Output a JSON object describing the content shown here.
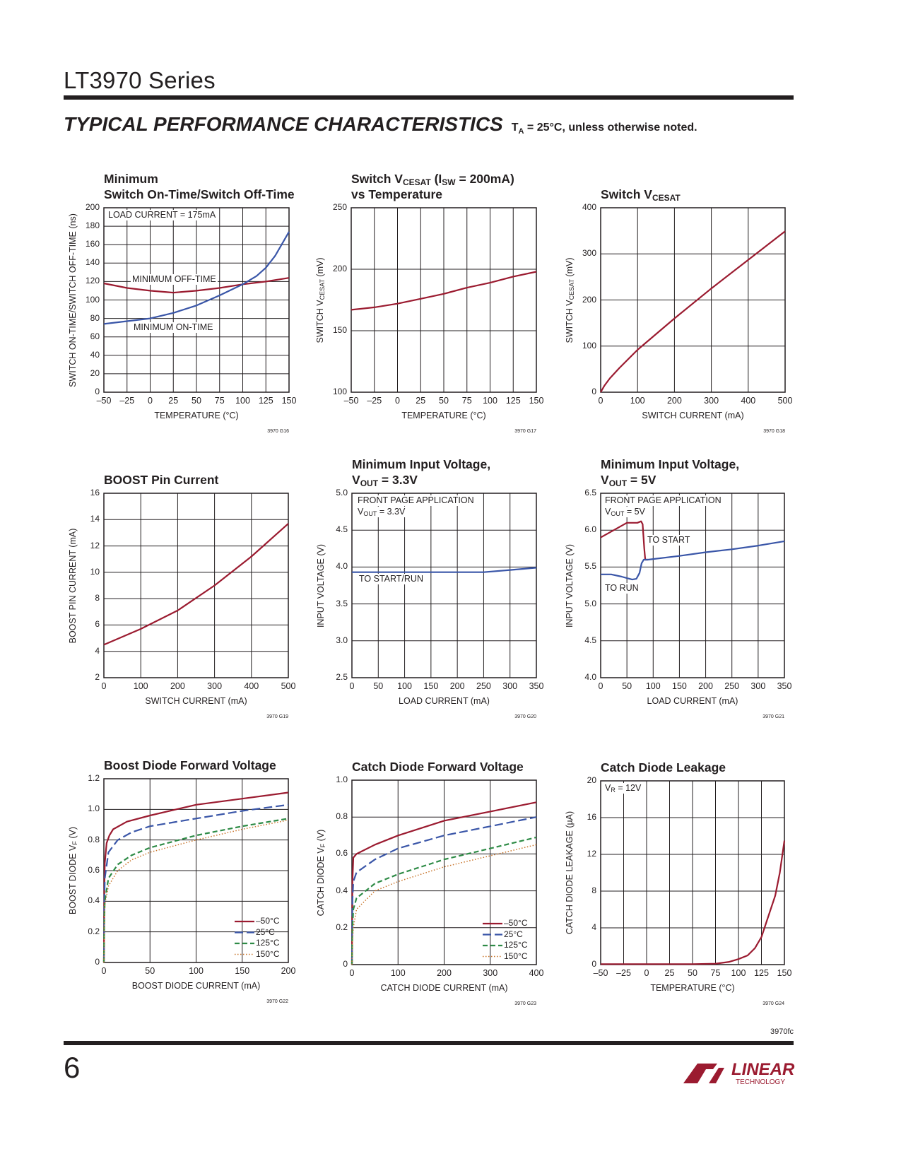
{
  "header": {
    "series_title": "LT3970 Series",
    "section_title": "TYPICAL PERFORMANCE CHARACTERISTICS",
    "section_note": [
      {
        "t": "T"
      },
      {
        "sub": "A"
      },
      {
        "t": " = 25°C, unless otherwise noted."
      }
    ]
  },
  "footer": {
    "page_code": "3970fc",
    "page_number": "6",
    "logo_text": "LINEAR TECHNOLOGY"
  },
  "colors": {
    "red": "#9b1b30",
    "blue": "#3a56a8",
    "green": "#2e8b46",
    "orange": "#c8742a",
    "grid": "#231f20"
  },
  "chart_data": [
    {
      "type": "line",
      "title": [
        [
          {
            "t": "Minimum"
          }
        ],
        [
          {
            "t": "Switch On-Time/Switch Off-Time"
          }
        ]
      ],
      "xlabel": [
        {
          "t": "TEMPERATURE (°C)"
        }
      ],
      "ylabel": [
        {
          "t": "SWITCH ON-TIME/SWITCH OFF-TIME (ns)"
        }
      ],
      "figure_id": "3970 G16",
      "xlim": [
        -50,
        150
      ],
      "ylim": [
        0,
        200
      ],
      "grid": true,
      "xticks": [
        -50,
        -25,
        0,
        25,
        50,
        75,
        100,
        125,
        150
      ],
      "xtick_labels": [
        "–50",
        "–25",
        "0",
        "25",
        "50",
        "75",
        "100",
        "125",
        "150"
      ],
      "yticks": [
        0,
        20,
        40,
        60,
        80,
        100,
        120,
        140,
        160,
        180,
        200
      ],
      "ytick_labels": [
        "0",
        "20",
        "40",
        "60",
        "80",
        "100",
        "120",
        "140",
        "160",
        "180",
        "200"
      ],
      "annotations": [
        [
          {
            "t": "LOAD CURRENT = 175mA"
          }
        ],
        [
          {
            "t": "MINIMUM OFF-TIME"
          }
        ],
        [
          {
            "t": "MINIMUM ON-TIME"
          }
        ]
      ],
      "series": [
        {
          "name": "MINIMUM OFF-TIME",
          "color": "red",
          "style": "solid",
          "x": [
            -50,
            -25,
            0,
            25,
            50,
            75,
            100,
            125,
            150
          ],
          "y": [
            118,
            113,
            110,
            108,
            110,
            113,
            117,
            120,
            124
          ]
        },
        {
          "name": "MINIMUM ON-TIME",
          "color": "blue",
          "style": "solid",
          "x": [
            -50,
            -25,
            0,
            25,
            50,
            75,
            100,
            115,
            125,
            135,
            142,
            150
          ],
          "y": [
            74,
            77,
            80,
            86,
            94,
            105,
            117,
            126,
            135,
            148,
            160,
            174
          ]
        }
      ]
    },
    {
      "type": "line",
      "title": [
        [
          {
            "t": "Switch V"
          },
          {
            "sub": "CESAT"
          },
          {
            "t": " (I"
          },
          {
            "sub": "SW"
          },
          {
            "t": " = 200mA)"
          }
        ],
        [
          {
            "t": "vs Temperature"
          }
        ]
      ],
      "xlabel": [
        {
          "t": "TEMPERATURE (°C)"
        }
      ],
      "ylabel": [
        {
          "t": "SWITCH V"
        },
        {
          "sub": "CESAT"
        },
        {
          "t": " (mV)"
        }
      ],
      "figure_id": "3970 G17",
      "xlim": [
        -50,
        150
      ],
      "ylim": [
        100,
        250
      ],
      "grid": true,
      "xticks": [
        -50,
        -25,
        0,
        25,
        50,
        75,
        100,
        125,
        150
      ],
      "xtick_labels": [
        "–50",
        "–25",
        "0",
        "25",
        "50",
        "75",
        "100",
        "125",
        "150"
      ],
      "yticks": [
        100,
        150,
        200,
        250
      ],
      "ytick_labels": [
        "100",
        "150",
        "200",
        "250"
      ],
      "annotations": [],
      "series": [
        {
          "color": "red",
          "style": "solid",
          "x": [
            -50,
            -25,
            0,
            25,
            50,
            75,
            100,
            125,
            150
          ],
          "y": [
            167,
            169,
            172,
            176,
            180,
            185,
            189,
            194,
            198
          ]
        }
      ]
    },
    {
      "type": "line",
      "title": [
        [
          {
            "t": "Switch V"
          },
          {
            "sub": "CESAT"
          }
        ]
      ],
      "xlabel": [
        {
          "t": "SWITCH CURRENT (mA)"
        }
      ],
      "ylabel": [
        {
          "t": "SWITCH V"
        },
        {
          "sub": "CESAT"
        },
        {
          "t": " (mV)"
        }
      ],
      "figure_id": "3970 G18",
      "xlim": [
        0,
        500
      ],
      "ylim": [
        0,
        400
      ],
      "grid": true,
      "xticks": [
        0,
        100,
        200,
        300,
        400,
        500
      ],
      "xtick_labels": [
        "0",
        "100",
        "200",
        "300",
        "400",
        "500"
      ],
      "yticks": [
        0,
        100,
        200,
        300,
        400
      ],
      "ytick_labels": [
        "0",
        "100",
        "200",
        "300",
        "400"
      ],
      "annotations": [],
      "series": [
        {
          "color": "red",
          "style": "solid",
          "x": [
            0,
            10,
            25,
            50,
            100,
            200,
            300,
            400,
            500
          ],
          "y": [
            0,
            14,
            30,
            52,
            92,
            160,
            225,
            287,
            349
          ]
        }
      ]
    },
    {
      "type": "line",
      "title": [
        [
          {
            "t": "BOOST Pin Current"
          }
        ]
      ],
      "xlabel": [
        {
          "t": "SWITCH CURRENT (mA)"
        }
      ],
      "ylabel": [
        {
          "t": "BOOST PIN CURRENT (mA)"
        }
      ],
      "figure_id": "3970 G19",
      "xlim": [
        0,
        500
      ],
      "ylim": [
        2,
        16
      ],
      "grid": true,
      "xticks": [
        0,
        100,
        200,
        300,
        400,
        500
      ],
      "xtick_labels": [
        "0",
        "100",
        "200",
        "300",
        "400",
        "500"
      ],
      "yticks": [
        2,
        4,
        6,
        8,
        10,
        12,
        14,
        16
      ],
      "ytick_labels": [
        "2",
        "4",
        "6",
        "8",
        "10",
        "12",
        "14",
        "16"
      ],
      "annotations": [],
      "series": [
        {
          "color": "red",
          "style": "solid",
          "x": [
            0,
            100,
            200,
            300,
            400,
            500
          ],
          "y": [
            4.5,
            5.7,
            7.1,
            9.0,
            11.2,
            13.7
          ]
        }
      ]
    },
    {
      "type": "line",
      "title": [
        [
          {
            "t": "Minimum Input Voltage,"
          }
        ],
        [
          {
            "t": "V"
          },
          {
            "sub": "OUT"
          },
          {
            "t": " = 3.3V"
          }
        ]
      ],
      "xlabel": [
        {
          "t": "LOAD CURRENT (mA)"
        }
      ],
      "ylabel": [
        {
          "t": "INPUT VOLTAGE (V)"
        }
      ],
      "figure_id": "3970 G20",
      "xlim": [
        0,
        350
      ],
      "ylim": [
        2.5,
        5.0
      ],
      "grid": true,
      "xticks": [
        0,
        50,
        100,
        150,
        200,
        250,
        300,
        350
      ],
      "xtick_labels": [
        "0",
        "50",
        "100",
        "150",
        "200",
        "250",
        "300",
        "350"
      ],
      "yticks": [
        2.5,
        3.0,
        3.5,
        4.0,
        4.5,
        5.0
      ],
      "ytick_labels": [
        "2.5",
        "3.0",
        "3.5",
        "4.0",
        "4.5",
        "5.0"
      ],
      "annotations": [
        [
          {
            "t": "FRONT PAGE APPLICATION"
          }
        ],
        [
          {
            "t": "V"
          },
          {
            "sub": "OUT"
          },
          {
            "t": " = 3.3V"
          }
        ],
        [
          {
            "t": "TO START/RUN"
          }
        ]
      ],
      "series": [
        {
          "name": "TO START/RUN",
          "color": "blue",
          "style": "solid",
          "x": [
            0,
            100,
            200,
            250,
            300,
            350
          ],
          "y": [
            3.93,
            3.93,
            3.93,
            3.93,
            3.96,
            3.99
          ]
        }
      ]
    },
    {
      "type": "line",
      "title": [
        [
          {
            "t": "Minimum Input Voltage,"
          }
        ],
        [
          {
            "t": "V"
          },
          {
            "sub": "OUT"
          },
          {
            "t": " = 5V"
          }
        ]
      ],
      "xlabel": [
        {
          "t": "LOAD CURRENT (mA)"
        }
      ],
      "ylabel": [
        {
          "t": "INPUT VOLTAGE (V)"
        }
      ],
      "figure_id": "3970 G21",
      "xlim": [
        0,
        350
      ],
      "ylim": [
        4.0,
        6.5
      ],
      "grid": true,
      "xticks": [
        0,
        50,
        100,
        150,
        200,
        250,
        300,
        350
      ],
      "xtick_labels": [
        "0",
        "50",
        "100",
        "150",
        "200",
        "250",
        "300",
        "350"
      ],
      "yticks": [
        4.0,
        4.5,
        5.0,
        5.5,
        6.0,
        6.5
      ],
      "ytick_labels": [
        "4.0",
        "4.5",
        "5.0",
        "5.5",
        "6.0",
        "6.5"
      ],
      "annotations": [
        [
          {
            "t": "FRONT PAGE APPLICATION"
          }
        ],
        [
          {
            "t": "V"
          },
          {
            "sub": "OUT"
          },
          {
            "t": " = 5V"
          }
        ],
        [
          {
            "t": "TO START"
          }
        ],
        [
          {
            "t": "TO RUN"
          }
        ]
      ],
      "series": [
        {
          "name": "TO START",
          "color": "red",
          "style": "solid",
          "x": [
            0,
            25,
            50,
            70,
            77,
            80,
            83,
            85,
            90
          ],
          "y": [
            5.9,
            6.0,
            6.1,
            6.1,
            6.12,
            6.08,
            5.75,
            5.6,
            5.6
          ]
        },
        {
          "name": "TO RUN",
          "color": "blue",
          "style": "solid",
          "x": [
            0,
            20,
            40,
            60,
            68,
            74,
            78,
            82,
            90,
            150,
            200,
            250,
            300,
            350
          ],
          "y": [
            5.4,
            5.4,
            5.37,
            5.33,
            5.34,
            5.42,
            5.55,
            5.6,
            5.6,
            5.65,
            5.7,
            5.74,
            5.79,
            5.85
          ]
        }
      ]
    },
    {
      "type": "line",
      "title": [
        [
          {
            "t": "Boost Diode Forward Voltage"
          }
        ]
      ],
      "xlabel": [
        {
          "t": "BOOST DIODE CURRENT (mA)"
        }
      ],
      "ylabel": [
        {
          "t": "BOOST DIODE V"
        },
        {
          "sub": "F"
        },
        {
          "t": " (V)"
        }
      ],
      "figure_id": "3970 G22",
      "xlim": [
        0,
        200
      ],
      "ylim": [
        0,
        1.2
      ],
      "grid": true,
      "legend": "bottom-right",
      "xticks": [
        0,
        50,
        100,
        150,
        200
      ],
      "xtick_labels": [
        "0",
        "50",
        "100",
        "150",
        "200"
      ],
      "yticks": [
        0,
        0.2,
        0.4,
        0.6,
        0.8,
        1.0,
        1.2
      ],
      "ytick_labels": [
        "0",
        "0.2",
        "0.4",
        "0.6",
        "0.8",
        "1.0",
        "1.2"
      ],
      "annotations": [],
      "series": [
        {
          "name": "–50°C",
          "color": "red",
          "style": "solid",
          "x": [
            0,
            0.5,
            1,
            3,
            6,
            10,
            25,
            50,
            100,
            150,
            200
          ],
          "y": [
            0,
            0.5,
            0.65,
            0.78,
            0.83,
            0.87,
            0.92,
            0.96,
            1.03,
            1.07,
            1.11
          ]
        },
        {
          "name": "25°C",
          "color": "blue",
          "style": "longdash",
          "x": [
            0,
            0.5,
            1,
            5,
            15,
            30,
            50,
            100,
            150,
            200
          ],
          "y": [
            0,
            0.4,
            0.55,
            0.72,
            0.8,
            0.85,
            0.89,
            0.94,
            0.99,
            1.03
          ]
        },
        {
          "name": "125°C",
          "color": "green",
          "style": "dash",
          "x": [
            0,
            0.5,
            1,
            5,
            15,
            30,
            50,
            100,
            150,
            200
          ],
          "y": [
            0,
            0.3,
            0.4,
            0.55,
            0.64,
            0.7,
            0.75,
            0.83,
            0.89,
            0.94
          ]
        },
        {
          "name": "150°C",
          "color": "orange",
          "style": "dot",
          "x": [
            0,
            0.5,
            1,
            5,
            15,
            30,
            50,
            100,
            150,
            200
          ],
          "y": [
            0,
            0.28,
            0.38,
            0.5,
            0.6,
            0.67,
            0.72,
            0.8,
            0.87,
            0.93
          ]
        }
      ]
    },
    {
      "type": "line",
      "title": [
        [
          {
            "t": "Catch Diode Forward Voltage"
          }
        ]
      ],
      "xlabel": [
        {
          "t": "CATCH DIODE CURRENT (mA)"
        }
      ],
      "ylabel": [
        {
          "t": "CATCH DIODE V"
        },
        {
          "sub": "F"
        },
        {
          "t": " (V)"
        }
      ],
      "figure_id": "3970 G23",
      "xlim": [
        0,
        400
      ],
      "ylim": [
        0,
        1.0
      ],
      "grid": true,
      "legend": "bottom-right",
      "xticks": [
        0,
        100,
        200,
        300,
        400
      ],
      "xtick_labels": [
        "0",
        "100",
        "200",
        "300",
        "400"
      ],
      "yticks": [
        0,
        0.2,
        0.4,
        0.6,
        0.8,
        1.0
      ],
      "ytick_labels": [
        "0",
        "0.2",
        "0.4",
        "0.6",
        "0.8",
        "1.0"
      ],
      "annotations": [],
      "series": [
        {
          "name": "–50°C",
          "color": "red",
          "style": "solid",
          "x": [
            0,
            1,
            3,
            10,
            50,
            100,
            200,
            300,
            400
          ],
          "y": [
            0,
            0.45,
            0.58,
            0.6,
            0.65,
            0.7,
            0.78,
            0.83,
            0.88
          ]
        },
        {
          "name": "25°C",
          "color": "blue",
          "style": "longdash",
          "x": [
            0,
            1,
            3,
            10,
            50,
            100,
            200,
            300,
            400
          ],
          "y": [
            0,
            0.35,
            0.45,
            0.5,
            0.57,
            0.63,
            0.7,
            0.75,
            0.8
          ]
        },
        {
          "name": "125°C",
          "color": "green",
          "style": "dash",
          "x": [
            0,
            1,
            3,
            10,
            50,
            100,
            200,
            300,
            400
          ],
          "y": [
            0,
            0.2,
            0.3,
            0.36,
            0.44,
            0.49,
            0.57,
            0.63,
            0.69
          ]
        },
        {
          "name": "150°C",
          "color": "orange",
          "style": "dot",
          "x": [
            0,
            1,
            3,
            10,
            50,
            100,
            200,
            300,
            400
          ],
          "y": [
            0,
            0.12,
            0.2,
            0.3,
            0.4,
            0.45,
            0.53,
            0.59,
            0.65
          ]
        }
      ]
    },
    {
      "type": "line",
      "title": [
        [
          {
            "t": "Catch Diode Leakage"
          }
        ]
      ],
      "xlabel": [
        {
          "t": "TEMPERATURE (°C)"
        }
      ],
      "ylabel": [
        {
          "t": "CATCH DIODE LEAKAGE (µA)"
        }
      ],
      "figure_id": "3970 G24",
      "xlim": [
        -50,
        150
      ],
      "ylim": [
        0,
        20
      ],
      "grid": true,
      "xticks": [
        -50,
        -25,
        0,
        25,
        50,
        75,
        100,
        125,
        150
      ],
      "xtick_labels": [
        "–50",
        "–25",
        "0",
        "25",
        "50",
        "75",
        "100",
        "125",
        "150"
      ],
      "yticks": [
        0,
        4,
        8,
        12,
        16,
        20
      ],
      "ytick_labels": [
        "0",
        "4",
        "8",
        "12",
        "16",
        "20"
      ],
      "annotations": [
        [
          {
            "t": "V"
          },
          {
            "sub": "R"
          },
          {
            "t": " = 12V"
          }
        ]
      ],
      "series": [
        {
          "color": "red",
          "style": "solid",
          "x": [
            -50,
            0,
            50,
            75,
            90,
            100,
            110,
            118,
            125,
            130,
            140,
            145,
            150
          ],
          "y": [
            0.05,
            0.05,
            0.05,
            0.1,
            0.3,
            0.6,
            1.0,
            1.8,
            3.0,
            4.5,
            7.5,
            10,
            13.5
          ]
        }
      ]
    }
  ]
}
